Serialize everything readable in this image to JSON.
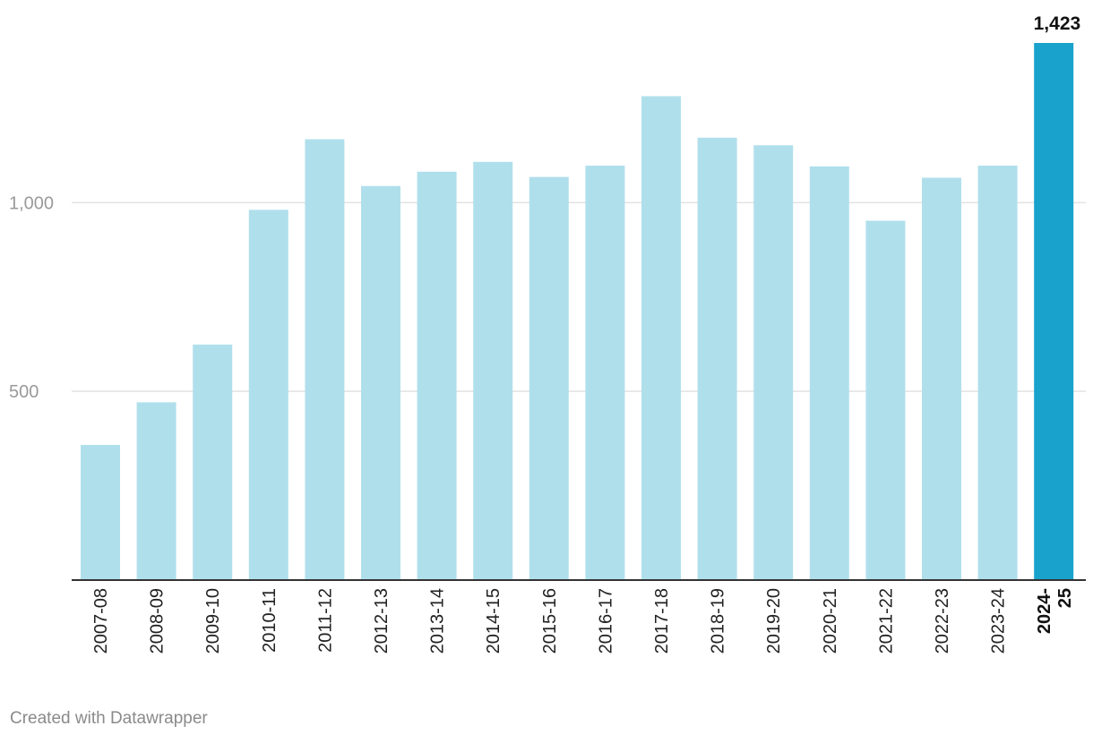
{
  "chart_data": {
    "type": "bar",
    "categories": [
      "2007-08",
      "2008-09",
      "2009-10",
      "2010-11",
      "2011-12",
      "2012-13",
      "2013-14",
      "2014-15",
      "2015-16",
      "2016-17",
      "2017-18",
      "2018-19",
      "2019-20",
      "2020-21",
      "2021-22",
      "2022-23",
      "2023-24",
      "2024-25"
    ],
    "values": [
      358,
      471,
      624,
      981,
      1168,
      1044,
      1082,
      1108,
      1068,
      1098,
      1282,
      1172,
      1152,
      1096,
      952,
      1066,
      1098,
      1423
    ],
    "highlight_index": 17,
    "data_labels": [
      {
        "index": 17,
        "text": "1,423"
      }
    ],
    "y_ticks": [
      {
        "value": 500,
        "label": "500"
      },
      {
        "value": 1000,
        "label": "1,000"
      }
    ],
    "ylim": [
      0,
      1423
    ],
    "grid": true,
    "title": "",
    "xlabel": "",
    "ylabel": "",
    "colors": {
      "bar": "#b0dfec",
      "highlight": "#18a2cc",
      "grid": "#e2e2e2",
      "baseline": "#333333"
    }
  },
  "footer": {
    "credit": "Created with Datawrapper"
  }
}
